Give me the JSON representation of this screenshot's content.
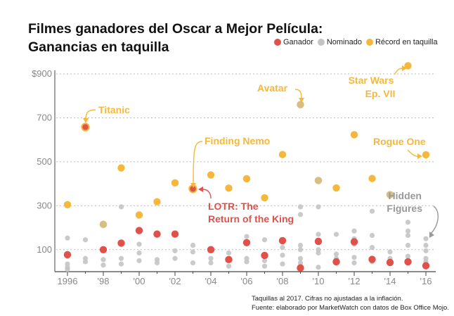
{
  "title_lines": [
    "Filmes ganadores del Oscar a Mejor Película:",
    "Ganancias en taquilla"
  ],
  "legend": [
    {
      "label": "Ganador",
      "color": "#e0514a"
    },
    {
      "label": "Nominado",
      "color": "#c4c4c4"
    },
    {
      "label": "Récord en taquilla",
      "color": "#f5b83d"
    }
  ],
  "footer": {
    "line1": "Taquillas al 2017. Cifras no ajustadas a la inflación.",
    "line2": "Fuente: elaborado por MarketWatch con datos de Box Office Mojo."
  },
  "colors": {
    "winner": "#e0514a",
    "nominee": "#c4c4c4",
    "record": "#f5b83d",
    "annotation": "#f5b83d",
    "lotr_annotation": "#e0514a",
    "hidden_annotation": "#999999",
    "axis_text": "#888888"
  },
  "chart_data": {
    "type": "scatter",
    "x_tick_labels": [
      "1996",
      "'98",
      "'00",
      "'02",
      "'04",
      "'06",
      "'08",
      "'10",
      "'12",
      "'14",
      "'16"
    ],
    "x_tick_values": [
      1996,
      1998,
      2000,
      2002,
      2004,
      2006,
      2008,
      2010,
      2012,
      2014,
      2016
    ],
    "y_tick_labels": [
      "$900",
      "700",
      "500",
      "300",
      "100"
    ],
    "y_tick_values": [
      900,
      700,
      500,
      300,
      100
    ],
    "xlim": [
      1995.5,
      2016.5
    ],
    "ylim": [
      0,
      960
    ],
    "series": [
      {
        "name": "Ganador",
        "points": [
          [
            1996,
            77
          ],
          [
            1997,
            658
          ],
          [
            1998,
            100
          ],
          [
            1999,
            130
          ],
          [
            2000,
            187
          ],
          [
            2001,
            171
          ],
          [
            2002,
            171
          ],
          [
            2003,
            377
          ],
          [
            2004,
            100
          ],
          [
            2005,
            55
          ],
          [
            2006,
            132
          ],
          [
            2007,
            74
          ],
          [
            2008,
            141
          ],
          [
            2009,
            17
          ],
          [
            2010,
            138
          ],
          [
            2011,
            45
          ],
          [
            2012,
            136
          ],
          [
            2013,
            56
          ],
          [
            2014,
            42
          ],
          [
            2015,
            45
          ],
          [
            2016,
            27
          ]
        ]
      },
      {
        "name": "Nominado",
        "points": [
          [
            1996,
            153
          ],
          [
            1996,
            35
          ],
          [
            1996,
            20
          ],
          [
            1996,
            10
          ],
          [
            1997,
            145
          ],
          [
            1997,
            60
          ],
          [
            1997,
            45
          ],
          [
            1998,
            216
          ],
          [
            1998,
            55
          ],
          [
            1998,
            30
          ],
          [
            1999,
            295
          ],
          [
            1999,
            60
          ],
          [
            1999,
            35
          ],
          [
            2000,
            125
          ],
          [
            2000,
            85
          ],
          [
            2000,
            50
          ],
          [
            2001,
            55
          ],
          [
            2001,
            40
          ],
          [
            2002,
            95
          ],
          [
            2002,
            60
          ],
          [
            2003,
            120
          ],
          [
            2003,
            90
          ],
          [
            2003,
            40
          ],
          [
            2004,
            105
          ],
          [
            2004,
            60
          ],
          [
            2004,
            40
          ],
          [
            2005,
            85
          ],
          [
            2005,
            55
          ],
          [
            2005,
            25
          ],
          [
            2006,
            160
          ],
          [
            2006,
            60
          ],
          [
            2006,
            45
          ],
          [
            2007,
            145
          ],
          [
            2007,
            50
          ],
          [
            2007,
            25
          ],
          [
            2008,
            110
          ],
          [
            2008,
            75
          ],
          [
            2008,
            35
          ],
          [
            2009,
            760
          ],
          [
            2009,
            295
          ],
          [
            2009,
            260
          ],
          [
            2009,
            120
          ],
          [
            2009,
            100
          ],
          [
            2009,
            60
          ],
          [
            2009,
            40
          ],
          [
            2009,
            25
          ],
          [
            2010,
            415
          ],
          [
            2010,
            295
          ],
          [
            2010,
            170
          ],
          [
            2010,
            100
          ],
          [
            2010,
            85
          ],
          [
            2010,
            20
          ],
          [
            2011,
            170
          ],
          [
            2011,
            80
          ],
          [
            2011,
            60
          ],
          [
            2011,
            40
          ],
          [
            2012,
            185
          ],
          [
            2012,
            150
          ],
          [
            2012,
            125
          ],
          [
            2012,
            65
          ],
          [
            2012,
            40
          ],
          [
            2013,
            275
          ],
          [
            2013,
            165
          ],
          [
            2013,
            110
          ],
          [
            2013,
            60
          ],
          [
            2013,
            45
          ],
          [
            2014,
            350
          ],
          [
            2014,
            90
          ],
          [
            2014,
            60
          ],
          [
            2014,
            45
          ],
          [
            2015,
            225
          ],
          [
            2015,
            185
          ],
          [
            2015,
            165
          ],
          [
            2015,
            120
          ],
          [
            2015,
            70
          ],
          [
            2015,
            40
          ],
          [
            2016,
            150
          ],
          [
            2016,
            120
          ],
          [
            2016,
            95
          ],
          [
            2016,
            60
          ],
          [
            2016,
            45
          ],
          [
            2016,
            30
          ]
        ]
      },
      {
        "name": "Récord en taquilla",
        "points": [
          [
            1996,
            305
          ],
          [
            1997,
            658
          ],
          [
            1998,
            215
          ],
          [
            1999,
            472
          ],
          [
            2000,
            258
          ],
          [
            2001,
            318
          ],
          [
            2002,
            404
          ],
          [
            2003,
            377
          ],
          [
            2004,
            440
          ],
          [
            2005,
            380
          ],
          [
            2006,
            423
          ],
          [
            2007,
            336
          ],
          [
            2008,
            533
          ],
          [
            2009,
            760
          ],
          [
            2010,
            415
          ],
          [
            2011,
            381
          ],
          [
            2012,
            623
          ],
          [
            2013,
            424
          ],
          [
            2014,
            350
          ],
          [
            2015,
            937
          ],
          [
            2016,
            532
          ]
        ]
      }
    ],
    "annotations": [
      {
        "text": "Titanic"
      },
      {
        "text": "Finding Nemo"
      },
      {
        "text": "Avatar"
      },
      {
        "text": "Star Wars Ep. VII"
      },
      {
        "text": "Rogue One"
      },
      {
        "text": "LOTR: The Return of the King"
      },
      {
        "text": "Hidden Figures"
      }
    ]
  }
}
